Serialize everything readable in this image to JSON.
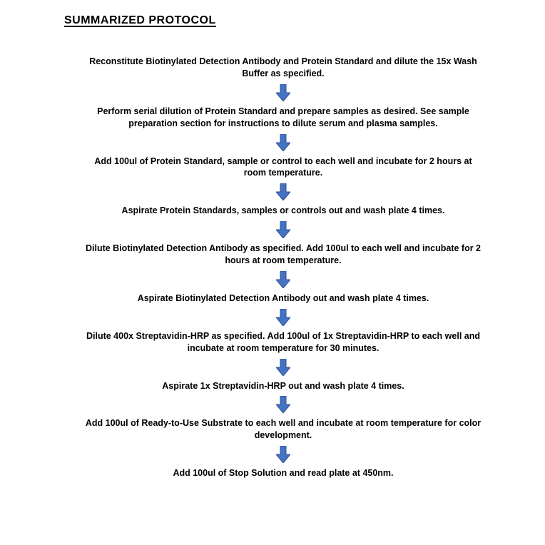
{
  "title": "SUMMARIZED PROTOCOL",
  "steps": [
    "Reconstitute Biotinylated Detection Antibody and Protein Standard and dilute the 15x Wash Buffer as specified.",
    "Perform serial dilution of Protein Standard and prepare samples as desired. See sample preparation section for instructions to dilute serum and plasma samples.",
    "Add 100ul of Protein Standard, sample or control to each well and incubate for 2 hours at room temperature.",
    "Aspirate Protein Standards, samples or controls out and wash plate 4 times.",
    "Dilute Biotinylated Detection Antibody as specified. Add 100ul to each well and incubate for 2 hours at room temperature.",
    "Aspirate Biotinylated Detection Antibody out and wash plate 4 times.",
    "Dilute 400x Streptavidin-HRP as specified. Add 100ul of 1x Streptavidin-HRP to each well and incubate at room temperature for 30 minutes.",
    "Aspirate 1x Streptavidin-HRP out and wash plate 4 times.",
    "Add 100ul of Ready-to-Use Substrate to each well and incubate at room temperature for color development.",
    "Add 100ul of Stop Solution and read plate at 450nm."
  ],
  "arrow": {
    "fill_color": "#4472c4",
    "stroke_color": "#2f528f",
    "width": 20,
    "height": 24
  },
  "layout": {
    "title_fontsize": 16,
    "step_fontsize": 12.5,
    "step_fontweight": "bold",
    "text_color": "#000000",
    "background_color": "#ffffff",
    "max_step_width": 560
  }
}
